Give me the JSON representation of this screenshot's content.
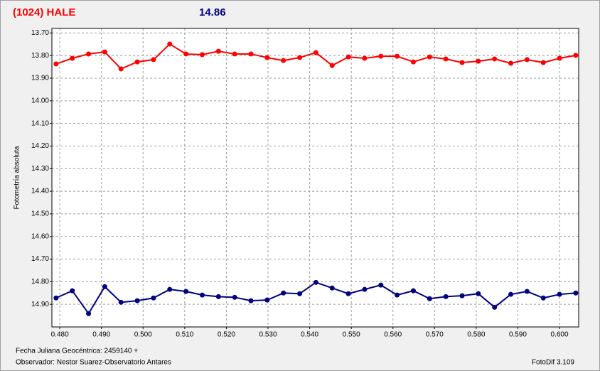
{
  "chart_data": {
    "type": "line",
    "title": "(1024) HALE",
    "subtitle": "14.86",
    "y_label": "Fotometría absoluta",
    "x_label": "Fecha Juliana Geocéntrica: 2459140 +",
    "observer": "Observador: Nestor Suarez-Observatorio Antares",
    "software": "FotoDif 3.109",
    "inverted_y": true,
    "grid": true,
    "xlim": [
      0.4781,
      0.6046
    ],
    "ylim": [
      13.68,
      15.0
    ],
    "xticks": [
      {
        "value": 0.48,
        "label": "0.480"
      },
      {
        "value": 0.49,
        "label": "0.490"
      },
      {
        "value": 0.5,
        "label": "0.500"
      },
      {
        "value": 0.51,
        "label": "0.510"
      },
      {
        "value": 0.52,
        "label": "0.520"
      },
      {
        "value": 0.53,
        "label": "0.530"
      },
      {
        "value": 0.54,
        "label": "0.540"
      },
      {
        "value": 0.55,
        "label": "0.550"
      },
      {
        "value": 0.56,
        "label": "0.560"
      },
      {
        "value": 0.57,
        "label": "0.570"
      },
      {
        "value": 0.58,
        "label": "0.580"
      },
      {
        "value": 0.59,
        "label": "0.590"
      },
      {
        "value": 0.6,
        "label": "0.600"
      }
    ],
    "yticks": [
      {
        "value": 13.7,
        "label": "13.70"
      },
      {
        "value": 13.8,
        "label": "13.80"
      },
      {
        "value": 13.9,
        "label": "13.90"
      },
      {
        "value": 14.0,
        "label": "14.00"
      },
      {
        "value": 14.1,
        "label": "14.10"
      },
      {
        "value": 14.2,
        "label": "14.20"
      },
      {
        "value": 14.3,
        "label": "14.30"
      },
      {
        "value": 14.4,
        "label": "14.40"
      },
      {
        "value": 14.5,
        "label": "14.50"
      },
      {
        "value": 14.6,
        "label": "14.60"
      },
      {
        "value": 14.7,
        "label": "14.70"
      },
      {
        "value": 14.8,
        "label": "14.80"
      },
      {
        "value": 14.9,
        "label": "14.90"
      }
    ],
    "x": [
      0.4791,
      0.483,
      0.4869,
      0.4908,
      0.4947,
      0.4986,
      0.5025,
      0.5064,
      0.5103,
      0.5142,
      0.5181,
      0.522,
      0.5259,
      0.5298,
      0.5337,
      0.5376,
      0.5415,
      0.5454,
      0.5493,
      0.5532,
      0.5571,
      0.561,
      0.5649,
      0.5688,
      0.5727,
      0.5766,
      0.5805,
      0.5844,
      0.5883,
      0.5922,
      0.5961,
      0.6,
      0.6039
    ],
    "series": [
      {
        "color": "#ff0000",
        "values": [
          13.837,
          13.812,
          13.793,
          13.784,
          13.859,
          13.828,
          13.818,
          13.749,
          13.793,
          13.796,
          13.781,
          13.793,
          13.793,
          13.809,
          13.822,
          13.809,
          13.787,
          13.844,
          13.806,
          13.812,
          13.803,
          13.803,
          13.828,
          13.806,
          13.815,
          13.831,
          13.825,
          13.815,
          13.834,
          13.818,
          13.831,
          13.812,
          13.799
        ]
      },
      {
        "color": "#000080",
        "values": [
          14.872,
          14.84,
          14.941,
          14.822,
          14.891,
          14.884,
          14.872,
          14.834,
          14.843,
          14.859,
          14.866,
          14.869,
          14.884,
          14.881,
          14.85,
          14.853,
          14.803,
          14.828,
          14.853,
          14.834,
          14.815,
          14.859,
          14.84,
          14.875,
          14.866,
          14.862,
          14.853,
          14.913,
          14.856,
          14.843,
          14.872,
          14.856,
          14.85
        ]
      }
    ]
  }
}
